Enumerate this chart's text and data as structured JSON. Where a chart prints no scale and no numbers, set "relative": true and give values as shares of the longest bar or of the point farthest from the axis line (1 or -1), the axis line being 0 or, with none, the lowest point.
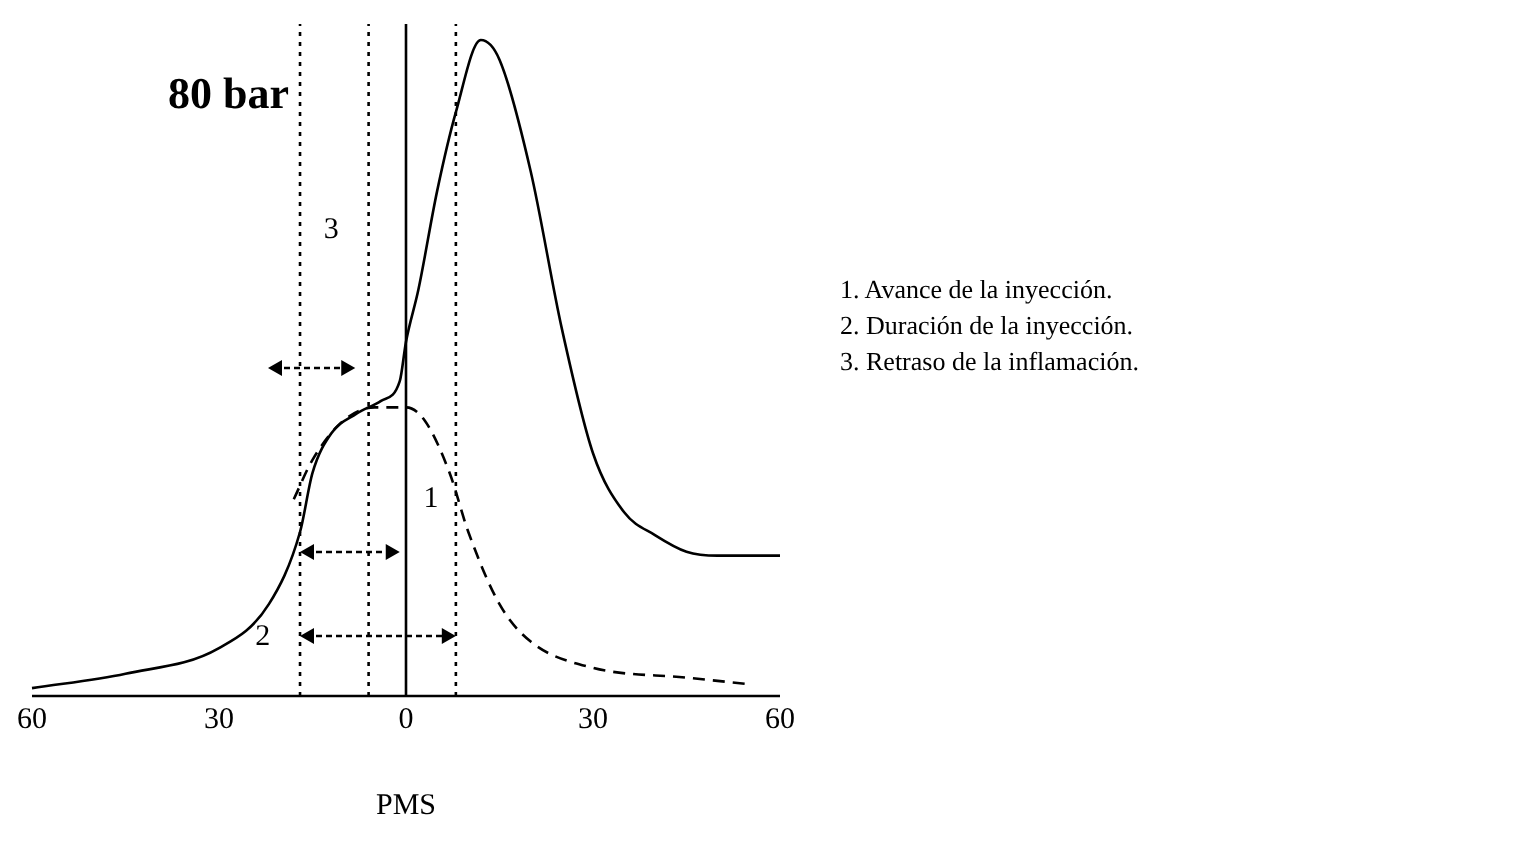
{
  "chart_data": {
    "type": "line",
    "title": "80 bar",
    "xlabel": "PMS",
    "relative": true,
    "xlim": [
      -60,
      60
    ],
    "xticks": [
      {
        "value": -60,
        "label": "60"
      },
      {
        "value": -30,
        "label": "30"
      },
      0,
      30,
      60
    ],
    "grid": false,
    "legend": false,
    "marker": "none",
    "series": [
      {
        "color": "#000000",
        "line_style": "solid",
        "x": [
          -60,
          -45,
          -30,
          -22,
          -17,
          -15,
          -12,
          -8,
          -4,
          -1,
          0,
          2,
          5,
          8,
          12,
          15,
          20,
          25,
          30,
          35,
          40,
          45,
          50,
          60
        ],
        "values": [
          0.012,
          0.034,
          0.073,
          0.14,
          0.25,
          0.34,
          0.4,
          0.43,
          0.45,
          0.48,
          0.54,
          0.62,
          0.77,
          0.89,
          1.0,
          0.97,
          0.8,
          0.56,
          0.37,
          0.28,
          0.245,
          0.22,
          0.214,
          0.214
        ]
      },
      {
        "color": "#000000",
        "line_style": "dashed",
        "x": [
          -18,
          -15,
          -10,
          -5,
          0,
          3,
          7,
          10,
          15,
          20,
          30,
          45,
          55
        ],
        "values": [
          0.3,
          0.36,
          0.42,
          0.44,
          0.44,
          0.42,
          0.34,
          0.25,
          0.14,
          0.083,
          0.043,
          0.028,
          0.018
        ]
      }
    ],
    "ref_lines": [
      {
        "axis": "x",
        "value": 0,
        "line_style": "solid"
      },
      {
        "axis": "x",
        "value": -17,
        "line_style": "dotted"
      },
      {
        "axis": "x",
        "value": -6,
        "line_style": "dotted"
      },
      {
        "axis": "x",
        "value": 8,
        "line_style": "dotted"
      }
    ],
    "annotations": [
      "3",
      "1",
      "2",
      "1. Avance de la inyección.",
      "2. Duración de la inyección.",
      "3. Retraso de la inflamación."
    ]
  }
}
